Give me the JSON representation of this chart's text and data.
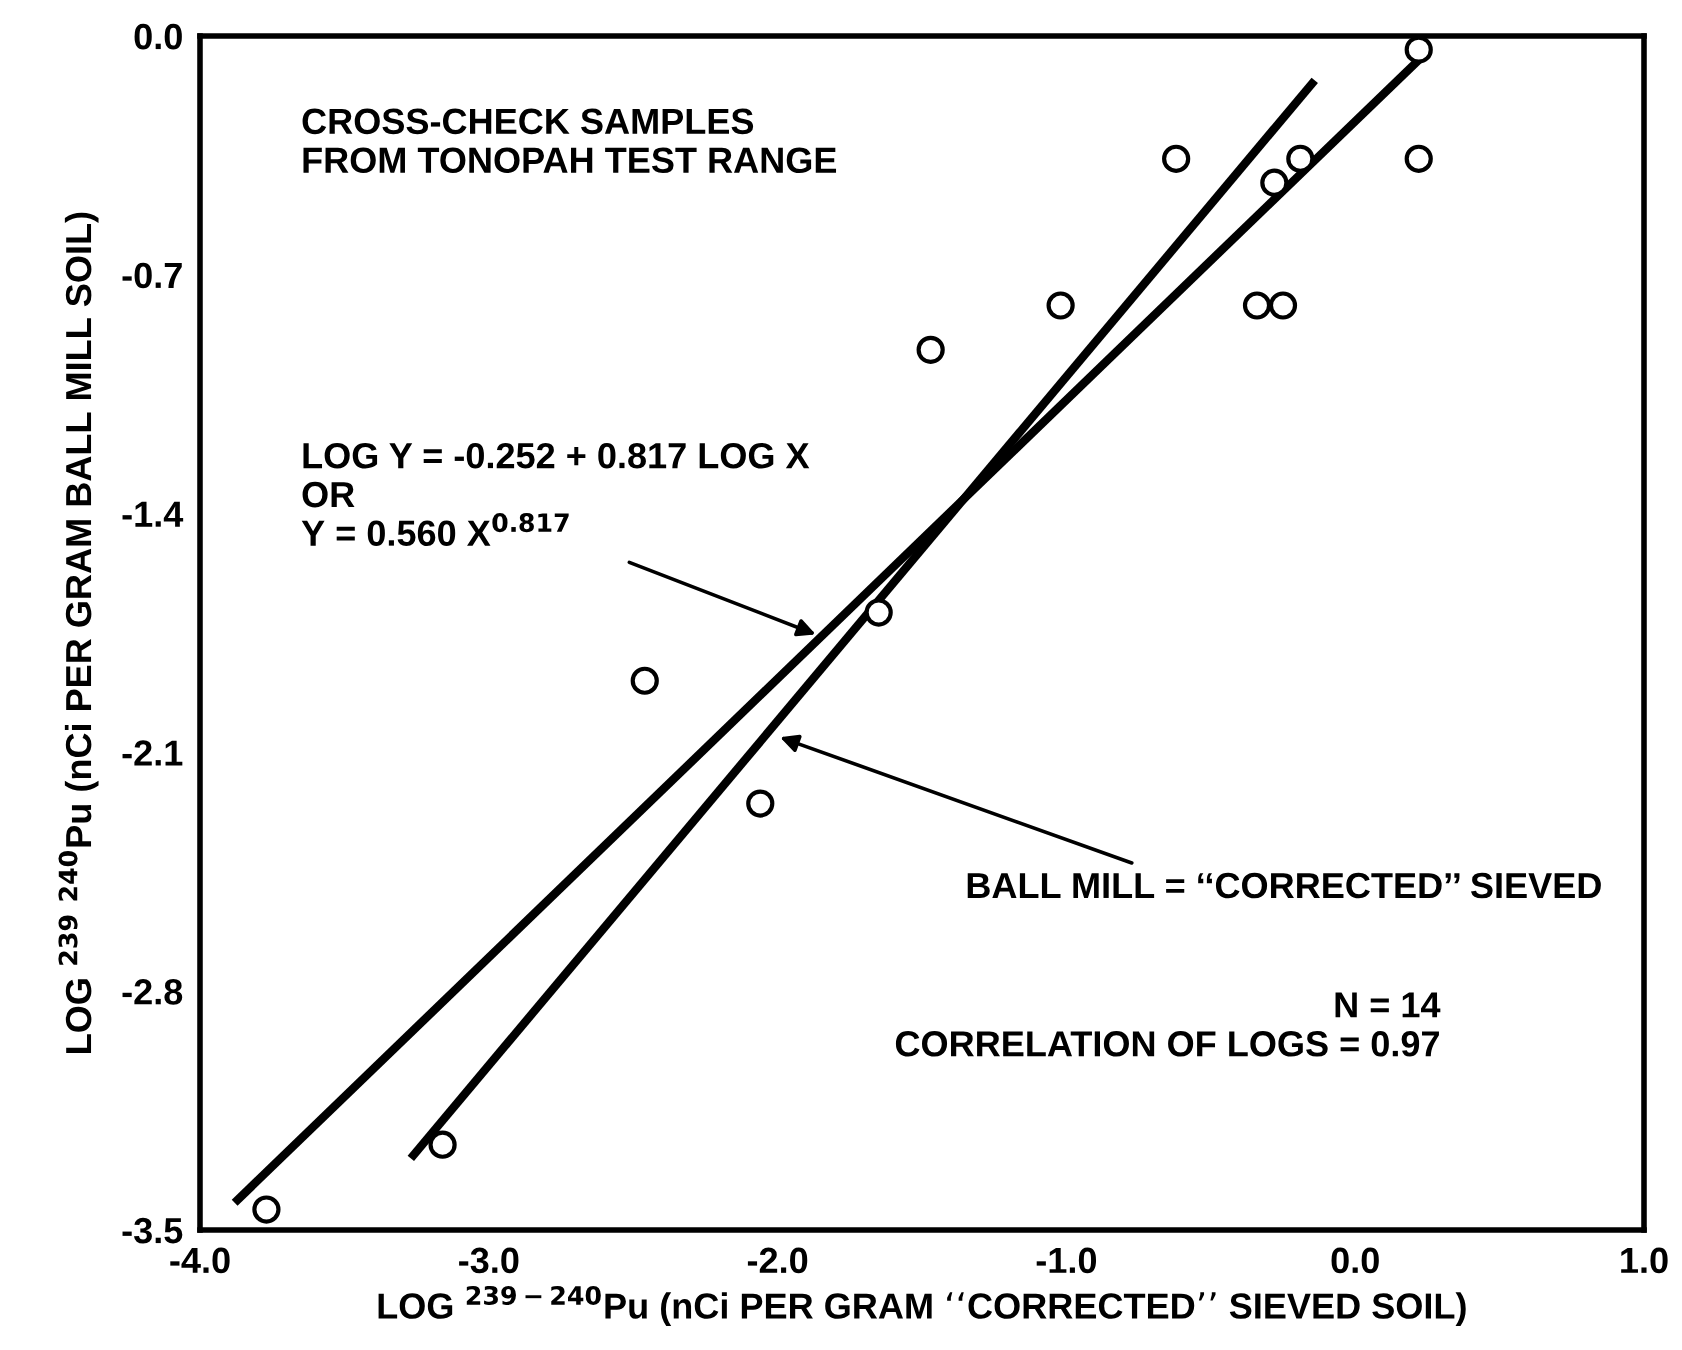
{
  "chart_data": {
    "type": "scatter",
    "xlabel": "LOG $^{239−240}$Pu (nCi PER GRAM ‘‘CORRECTED’’ SIEVED SOIL)",
    "ylabel": "LOG $^{239}$ $^{240}$Pu (nCi PER GRAM BALL MILL SOIL)",
    "xlim": [
      -4.0,
      1.0
    ],
    "ylim": [
      -3.5,
      0.0
    ],
    "xticks": [
      {
        "value": -4.0,
        "label": "-4.0"
      },
      {
        "value": -3.0,
        "label": "-3.0"
      },
      {
        "value": -2.0,
        "label": "-2.0"
      },
      {
        "value": -1.0,
        "label": "-1.0"
      },
      {
        "value": 0.0,
        "label": "0.0"
      },
      {
        "value": 1.0,
        "label": "1.0"
      }
    ],
    "yticks": [
      {
        "value": 0.0,
        "label": "0.0"
      },
      {
        "value": -0.7,
        "label": "-0.7"
      },
      {
        "value": -1.4,
        "label": "-1.4"
      },
      {
        "value": -2.1,
        "label": "-2.1"
      },
      {
        "value": -2.8,
        "label": "-2.8"
      },
      {
        "value": -3.5,
        "label": "-3.5"
      }
    ],
    "grid": false,
    "legend": false,
    "marker": "circle",
    "series": [
      {
        "color": "#000000",
        "x": [
          -3.77,
          -3.16,
          -2.46,
          -2.06,
          -1.65,
          -1.47,
          -1.02,
          -0.62,
          -0.34,
          -0.25,
          -0.28,
          -0.19,
          0.22,
          0.22
        ],
        "values": [
          -3.44,
          -3.25,
          -1.89,
          -2.25,
          -1.69,
          -0.92,
          -0.79,
          -0.36,
          -0.79,
          -0.79,
          -0.43,
          -0.36,
          -0.04,
          -0.36
        ]
      },
      {
        "type": "line",
        "color": "#000000",
        "marker": "none",
        "line_style": "solid",
        "x": [
          -3.88,
          0.22
        ],
        "values": [
          -3.42,
          -0.07
        ]
      },
      {
        "type": "line",
        "color": "#000000",
        "marker": "none",
        "line_style": "solid",
        "x": [
          -3.27,
          -0.14
        ],
        "values": [
          -3.29,
          -0.13
        ]
      }
    ],
    "annotations": [
      "CROSS-CHECK SAMPLES\nFROM TONOPAH TEST RANGE",
      {
        "text": "LOG Y = -0.252 + 0.817 LOG X\nOR\nY = 0.560 X$^{0.817}$",
        "x": -1.85,
        "y": -1.76
      },
      {
        "text": "BALL MILL = ‘‘CORRECTED’’ SIEVED",
        "x": -2.01,
        "y": -2.05
      },
      "N = 14\nCORRELATION OF LOGS = 0.97"
    ]
  }
}
